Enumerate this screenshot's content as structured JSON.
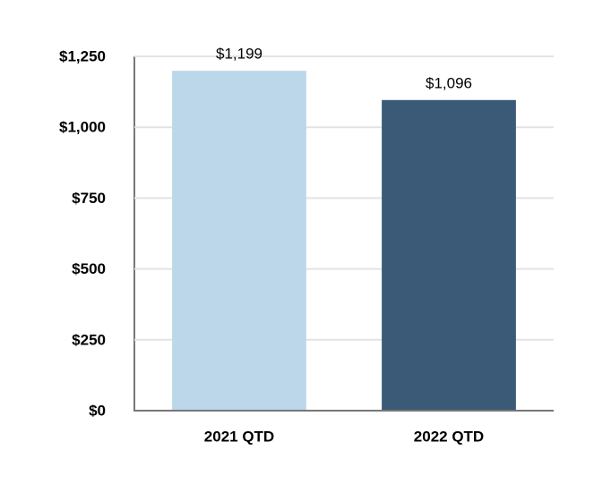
{
  "chart_data": {
    "type": "bar",
    "categories": [
      "2021 QTD",
      "2022 QTD"
    ],
    "values": [
      1199,
      1096
    ],
    "value_labels": [
      "$1,199",
      "$1,096"
    ],
    "colors": [
      "#bcd6ea",
      "#3b5a78"
    ],
    "ylim": [
      0,
      1250
    ],
    "yticks": [
      {
        "value": 0,
        "label": "$0"
      },
      {
        "value": 250,
        "label": "$250"
      },
      {
        "value": 500,
        "label": "$500"
      },
      {
        "value": 750,
        "label": "$750"
      },
      {
        "value": 1000,
        "label": "$1,000"
      },
      {
        "value": 1250,
        "label": "$1,250"
      }
    ],
    "grid": true
  }
}
